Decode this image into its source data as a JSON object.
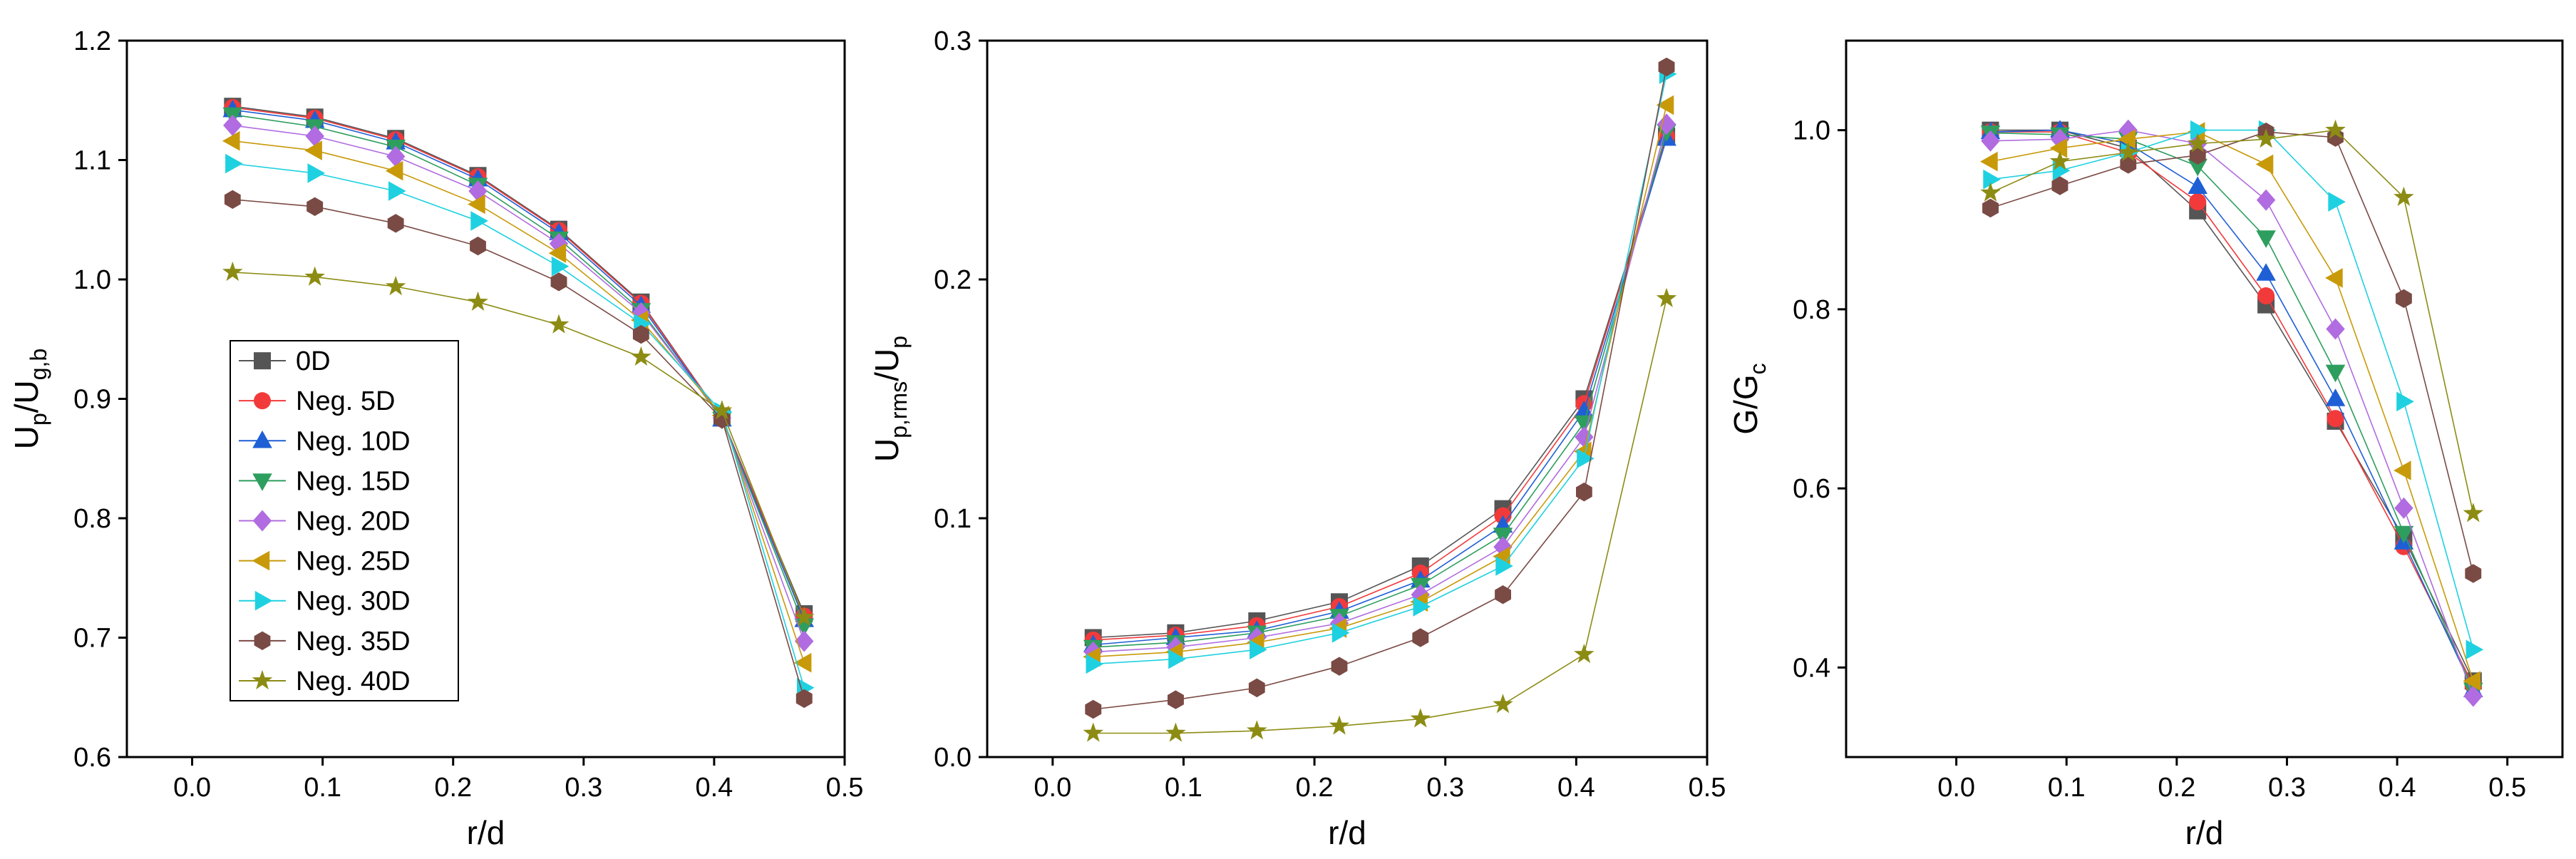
{
  "chart_data": [
    {
      "type": "line",
      "id": "left",
      "xlabel": "r/d",
      "ylabel": {
        "base": "U",
        "sub": "p",
        "mid": "/U",
        "sub2": "g,b"
      },
      "xlim": [
        -0.05,
        0.5
      ],
      "ylim": [
        0.6,
        1.2
      ],
      "xticks": [
        "0.0",
        "0.1",
        "0.2",
        "0.3",
        "0.4",
        "0.5"
      ],
      "yticks": [
        "0.6",
        "0.7",
        "0.8",
        "0.9",
        "1.0",
        "1.1",
        "1.2"
      ],
      "x": [
        0.031,
        0.094,
        0.156,
        0.219,
        0.281,
        0.344,
        0.406,
        0.469
      ],
      "legend": {
        "position": "bottom-left",
        "show": true
      },
      "series": [
        {
          "name": "0D",
          "color": "#555555",
          "marker": "square",
          "values": [
            1.145,
            1.136,
            1.118,
            1.087,
            1.042,
            0.981,
            0.884,
            0.72
          ]
        },
        {
          "name": "Neg. 5D",
          "color": "#f23a3a",
          "marker": "circle",
          "values": [
            1.144,
            1.135,
            1.117,
            1.086,
            1.041,
            0.98,
            0.884,
            0.718
          ]
        },
        {
          "name": "Neg. 10D",
          "color": "#1f5fd6",
          "marker": "triangle-up",
          "values": [
            1.142,
            1.133,
            1.115,
            1.084,
            1.039,
            0.978,
            0.883,
            0.715
          ]
        },
        {
          "name": "Neg. 15D",
          "color": "#2e9e5e",
          "marker": "triangle-down",
          "values": [
            1.138,
            1.128,
            1.111,
            1.079,
            1.034,
            0.974,
            0.883,
            0.71
          ]
        },
        {
          "name": "Neg. 20D",
          "color": "#b06ce0",
          "marker": "diamond",
          "values": [
            1.129,
            1.12,
            1.103,
            1.074,
            1.03,
            0.972,
            0.884,
            0.697
          ]
        },
        {
          "name": "Neg. 25D",
          "color": "#c89a0a",
          "marker": "triangle-left",
          "values": [
            1.116,
            1.108,
            1.091,
            1.063,
            1.022,
            0.966,
            0.886,
            0.679
          ]
        },
        {
          "name": "Neg. 30D",
          "color": "#1fd1e0",
          "marker": "triangle-right",
          "values": [
            1.097,
            1.089,
            1.074,
            1.049,
            1.011,
            0.963,
            0.889,
            0.658
          ]
        },
        {
          "name": "Neg. 35D",
          "color": "#7a4a44",
          "marker": "hexagon",
          "values": [
            1.067,
            1.061,
            1.047,
            1.028,
            0.998,
            0.954,
            0.883,
            0.649
          ]
        },
        {
          "name": "Neg. 40D",
          "color": "#8c8c14",
          "marker": "star",
          "values": [
            1.006,
            1.002,
            0.994,
            0.981,
            0.962,
            0.935,
            0.89,
            0.717
          ]
        }
      ]
    },
    {
      "type": "line",
      "id": "middle",
      "xlabel": "r/d",
      "ylabel": {
        "base": "U",
        "sub": "p,rms",
        "mid": "/U",
        "sub2": "p"
      },
      "xlim": [
        -0.05,
        0.5
      ],
      "ylim": [
        0.0,
        0.3
      ],
      "xticks": [
        "0.0",
        "0.1",
        "0.2",
        "0.3",
        "0.4",
        "0.5"
      ],
      "yticks": [
        "0.0",
        "0.1",
        "0.2",
        "0.3"
      ],
      "x": [
        0.031,
        0.094,
        0.156,
        0.219,
        0.281,
        0.344,
        0.406,
        0.469
      ],
      "legend": {
        "show": false
      },
      "series": [
        {
          "name": "0D",
          "color": "#555555",
          "marker": "square",
          "values": [
            0.05,
            0.052,
            0.057,
            0.065,
            0.08,
            0.104,
            0.15,
            0.26
          ]
        },
        {
          "name": "Neg. 5D",
          "color": "#f23a3a",
          "marker": "circle",
          "values": [
            0.049,
            0.051,
            0.055,
            0.063,
            0.077,
            0.101,
            0.148,
            0.26
          ]
        },
        {
          "name": "Neg. 10D",
          "color": "#1f5fd6",
          "marker": "triangle-up",
          "values": [
            0.047,
            0.05,
            0.053,
            0.061,
            0.074,
            0.097,
            0.145,
            0.259
          ]
        },
        {
          "name": "Neg. 15D",
          "color": "#2e9e5e",
          "marker": "triangle-down",
          "values": [
            0.046,
            0.048,
            0.052,
            0.059,
            0.072,
            0.093,
            0.14,
            0.262
          ]
        },
        {
          "name": "Neg. 20D",
          "color": "#b06ce0",
          "marker": "diamond",
          "values": [
            0.044,
            0.046,
            0.05,
            0.056,
            0.068,
            0.088,
            0.134,
            0.265
          ]
        },
        {
          "name": "Neg. 25D",
          "color": "#c89a0a",
          "marker": "triangle-left",
          "values": [
            0.042,
            0.044,
            0.048,
            0.054,
            0.065,
            0.084,
            0.128,
            0.273
          ]
        },
        {
          "name": "Neg. 30D",
          "color": "#1fd1e0",
          "marker": "triangle-right",
          "values": [
            0.039,
            0.041,
            0.045,
            0.052,
            0.063,
            0.08,
            0.125,
            0.286
          ]
        },
        {
          "name": "Neg. 35D",
          "color": "#7a4a44",
          "marker": "hexagon",
          "values": [
            0.02,
            0.024,
            0.029,
            0.038,
            0.05,
            0.068,
            0.111,
            0.289
          ]
        },
        {
          "name": "Neg. 40D",
          "color": "#8c8c14",
          "marker": "star",
          "values": [
            0.01,
            0.01,
            0.011,
            0.013,
            0.016,
            0.022,
            0.043,
            0.192
          ]
        }
      ]
    },
    {
      "type": "line",
      "id": "right",
      "xlabel": "r/d",
      "ylabel": {
        "base": "G/G",
        "sub": "c",
        "mid": "",
        "sub2": ""
      },
      "xlim": [
        -0.1,
        0.55
      ],
      "ylim": [
        0.3,
        1.1
      ],
      "xticks": [
        "0.0",
        "0.1",
        "0.2",
        "0.3",
        "0.4",
        "0.5"
      ],
      "yticks": [
        "0.4",
        "0.6",
        "0.8",
        "1.0"
      ],
      "x": [
        0.031,
        0.094,
        0.156,
        0.219,
        0.281,
        0.344,
        0.406,
        0.469
      ],
      "legend": {
        "show": false
      },
      "series": [
        {
          "name": "0D",
          "color": "#555555",
          "marker": "square",
          "values": [
            1.0,
            1.0,
            0.98,
            0.91,
            0.805,
            0.675,
            0.545,
            0.385
          ]
        },
        {
          "name": "Neg. 5D",
          "color": "#f23a3a",
          "marker": "circle",
          "values": [
            0.998,
            0.998,
            0.975,
            0.92,
            0.815,
            0.678,
            0.535,
            0.38
          ]
        },
        {
          "name": "Neg. 10D",
          "color": "#1f5fd6",
          "marker": "triangle-up",
          "values": [
            0.998,
            1.0,
            0.985,
            0.937,
            0.84,
            0.7,
            0.54,
            0.375
          ]
        },
        {
          "name": "Neg. 15D",
          "color": "#2e9e5e",
          "marker": "triangle-down",
          "values": [
            0.997,
            0.995,
            0.99,
            0.96,
            0.88,
            0.73,
            0.55,
            0.375
          ]
        },
        {
          "name": "Neg. 20D",
          "color": "#b06ce0",
          "marker": "diamond",
          "values": [
            0.988,
            0.99,
            1.0,
            0.985,
            0.922,
            0.778,
            0.578,
            0.368
          ]
        },
        {
          "name": "Neg. 25D",
          "color": "#c89a0a",
          "marker": "triangle-left",
          "values": [
            0.965,
            0.98,
            0.99,
            0.998,
            0.962,
            0.835,
            0.62,
            0.385
          ]
        },
        {
          "name": "Neg. 30D",
          "color": "#1fd1e0",
          "marker": "triangle-right",
          "values": [
            0.945,
            0.955,
            0.975,
            1.0,
            1.0,
            0.92,
            0.697,
            0.42
          ]
        },
        {
          "name": "Neg. 35D",
          "color": "#7a4a44",
          "marker": "hexagon",
          "values": [
            0.913,
            0.938,
            0.962,
            0.972,
            0.998,
            0.992,
            0.812,
            0.505
          ]
        },
        {
          "name": "Neg. 40D",
          "color": "#8c8c14",
          "marker": "star",
          "values": [
            0.93,
            0.965,
            0.975,
            0.985,
            0.99,
            1.0,
            0.925,
            0.572
          ]
        }
      ]
    }
  ]
}
